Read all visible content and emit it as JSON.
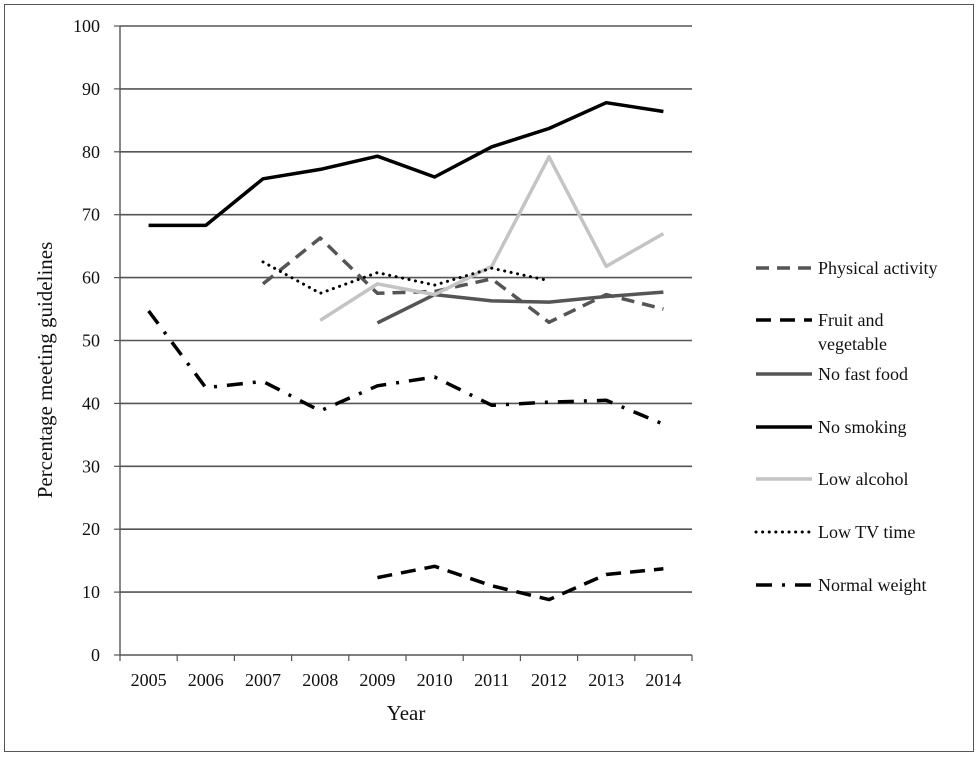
{
  "chart_data": {
    "type": "line",
    "title": "",
    "xlabel": "Year",
    "ylabel": "Percentage meeting guidelines",
    "ylim": [
      0,
      100
    ],
    "yticks": [
      "0",
      "10",
      "20",
      "30",
      "40",
      "50",
      "60",
      "70",
      "80",
      "90",
      "100"
    ],
    "categories": [
      "2005",
      "2006",
      "2007",
      "2008",
      "2009",
      "2010",
      "2011",
      "2012",
      "2013",
      "2014"
    ],
    "grid": "horizontal",
    "legend_position": "right",
    "series": [
      {
        "name": "Physical activity",
        "color": "#555555",
        "dash": "dashed",
        "values": [
          null,
          null,
          59,
          66.3,
          57.5,
          57.8,
          59.8,
          52.9,
          57.3,
          55
        ]
      },
      {
        "name": "Fruit and vegetable",
        "color": "#000000",
        "dash": "long-dash",
        "values": [
          null,
          null,
          null,
          null,
          12.3,
          14.1,
          11,
          8.8,
          12.8,
          13.7
        ]
      },
      {
        "name": "No fast food",
        "color": "#555555",
        "dash": "solid",
        "values": [
          null,
          null,
          null,
          null,
          52.8,
          57.3,
          56.3,
          56.1,
          57,
          57.7
        ]
      },
      {
        "name": "No smoking",
        "color": "#000000",
        "dash": "solid",
        "values": [
          68.3,
          68.3,
          75.7,
          77.2,
          79.3,
          76,
          80.8,
          83.7,
          87.8,
          86.4
        ]
      },
      {
        "name": "Low alcohol",
        "color": "#c4c4c4",
        "dash": "solid",
        "values": [
          null,
          null,
          null,
          53.2,
          59,
          57.3,
          61.8,
          79.2,
          61.8,
          67
        ]
      },
      {
        "name": "Low TV time",
        "color": "#000000",
        "dash": "dotted",
        "values": [
          null,
          null,
          62.5,
          57.5,
          60.8,
          58.8,
          61.5,
          59.5,
          null,
          null
        ]
      },
      {
        "name": "Normal weight",
        "color": "#000000",
        "dash": "dash-dot",
        "values": [
          54.7,
          42.5,
          43.5,
          38.8,
          42.8,
          44.2,
          39.7,
          40.2,
          40.5,
          36.7
        ]
      }
    ]
  }
}
